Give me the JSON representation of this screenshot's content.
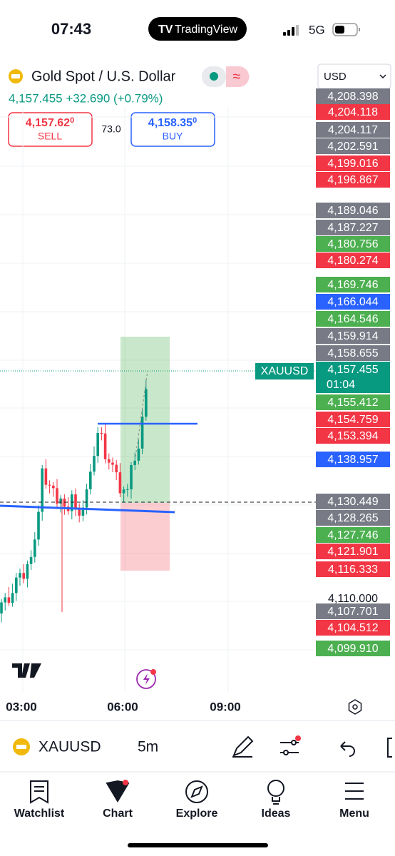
{
  "status_bar": {
    "time": "07:43",
    "brand": "TradingView",
    "network": "5G"
  },
  "header": {
    "symbol_name": "Gold Spot / U.S. Dollar",
    "toggle_icon": "≈",
    "currency": "USD",
    "quote_line": "4,157.455 +32.690 (+0.79%)"
  },
  "trade": {
    "sell_price": "4,157.62",
    "sell_super": "0",
    "sell_label": "SELL",
    "spread": "73.0",
    "buy_price": "4,158.35",
    "buy_super": "0",
    "buy_label": "BUY"
  },
  "chart": {
    "price_labels": [
      {
        "label": "4,208.398",
        "color": "#787b86"
      },
      {
        "label": "4,204.118",
        "color": "#f23645"
      },
      {
        "label": "4,204.117",
        "color": "#787b86"
      },
      {
        "label": "4,202.591",
        "color": "#787b86"
      },
      {
        "label": "4,199.016",
        "color": "#f23645"
      },
      {
        "label": "4,196.867",
        "color": "#f23645"
      },
      {
        "label": "4,189.046",
        "color": "#787b86"
      },
      {
        "label": "4,187.227",
        "color": "#787b86"
      },
      {
        "label": "4,180.756",
        "color": "#4caf50"
      },
      {
        "label": "4,180.274",
        "color": "#f23645"
      },
      {
        "label": "4,169.746",
        "color": "#4caf50"
      },
      {
        "label": "4,166.044",
        "color": "#2962ff"
      },
      {
        "label": "4,164.546",
        "color": "#4caf50"
      },
      {
        "label": "4,159.914",
        "color": "#787b86"
      },
      {
        "label": "4,158.655",
        "color": "#787b86"
      },
      {
        "label": "4,155.412",
        "color": "#4caf50"
      },
      {
        "label": "4,154.759",
        "color": "#f23645"
      },
      {
        "label": "4,153.394",
        "color": "#f23645"
      },
      {
        "label": "4,138.957",
        "color": "#2962ff"
      },
      {
        "label": "4,130.449",
        "color": "#787b86"
      },
      {
        "label": "4,128.265",
        "color": "#787b86"
      },
      {
        "label": "4,127.746",
        "color": "#4caf50"
      },
      {
        "label": "4,121.901",
        "color": "#f23645"
      },
      {
        "label": "4,116.333",
        "color": "#f23645"
      },
      {
        "label": "4,107.701",
        "color": "#787b86"
      },
      {
        "label": "4,104.512",
        "color": "#f23645"
      },
      {
        "label": "4,099.910",
        "color": "#4caf50"
      }
    ],
    "current": {
      "symbol": "XAUUSD",
      "price": "4,157.455",
      "countdown": "01:04",
      "color": "#089981"
    },
    "plain_level": "4,110.000",
    "time_labels": [
      "03:00",
      "06:00",
      "09:00"
    ]
  },
  "toolbar": {
    "symbol": "XAUUSD",
    "interval": "5m"
  },
  "nav": [
    "Watchlist",
    "Chart",
    "Explore",
    "Ideas",
    "Menu"
  ]
}
